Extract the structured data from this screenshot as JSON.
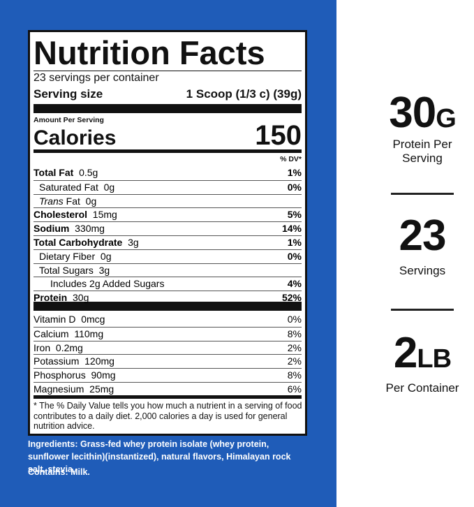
{
  "label": {
    "title": "Nutrition Facts",
    "servings": "23 servings per container",
    "serving_size_label": "Serving size",
    "serving_size_value": "1 Scoop (1/3 c) (39g)",
    "amount_per_serving": "Amount Per Serving",
    "calories_label": "Calories",
    "calories_value": "150",
    "dv_header": "% DV*",
    "nutrients": [
      {
        "name": "Total Fat",
        "amount": "0.5g",
        "dv": "1%"
      },
      {
        "name": "Saturated Fat",
        "amount": "0g",
        "dv": "0%"
      },
      {
        "prefix": "Trans",
        "name": "Fat",
        "amount": "0g"
      },
      {
        "name": "Cholesterol",
        "amount": "15mg",
        "dv": "5%"
      },
      {
        "name": "Sodium",
        "amount": "330mg",
        "dv": "14%"
      },
      {
        "name": "Total Carbohydrate",
        "amount": "3g",
        "dv": "1%"
      },
      {
        "name": "Dietary Fiber",
        "amount": "0g",
        "dv": "0%"
      },
      {
        "name": "Total Sugars",
        "amount": "3g"
      },
      {
        "name": "Includes 2g Added Sugars",
        "dv": "4%"
      },
      {
        "name": "Protein",
        "amount": "30g",
        "dv": "52%"
      }
    ],
    "vitamins": [
      {
        "name": "Vitamin D",
        "amount": "0mcg",
        "dv": "0%"
      },
      {
        "name": "Calcium",
        "amount": "110mg",
        "dv": "8%"
      },
      {
        "name": "Iron",
        "amount": "0.2mg",
        "dv": "2%"
      },
      {
        "name": "Potassium",
        "amount": "120mg",
        "dv": "2%"
      },
      {
        "name": "Phosphorus",
        "amount": "90mg",
        "dv": "8%"
      },
      {
        "name": "Magnesium",
        "amount": "25mg",
        "dv": "6%"
      }
    ],
    "footnote": "* The % Daily Value tells you how much a nutrient in a serving of food contributes to a daily diet. 2,000 calories a day is used for general nutrition advice."
  },
  "ingredients": {
    "label": "Ingredients:",
    "text": "Grass-fed whey protein isolate (whey protein, sunflower lecithin)(instantized), natural flavors, Himalayan rock salt, stevia."
  },
  "contains": {
    "label": "Contains:",
    "text": "Milk."
  },
  "stats": [
    {
      "value": "30",
      "unit": "G",
      "label": "Protein Per Serving"
    },
    {
      "value": "23",
      "label": "Servings"
    },
    {
      "value": "2",
      "unit": "LB",
      "label": "Per Container"
    }
  ]
}
